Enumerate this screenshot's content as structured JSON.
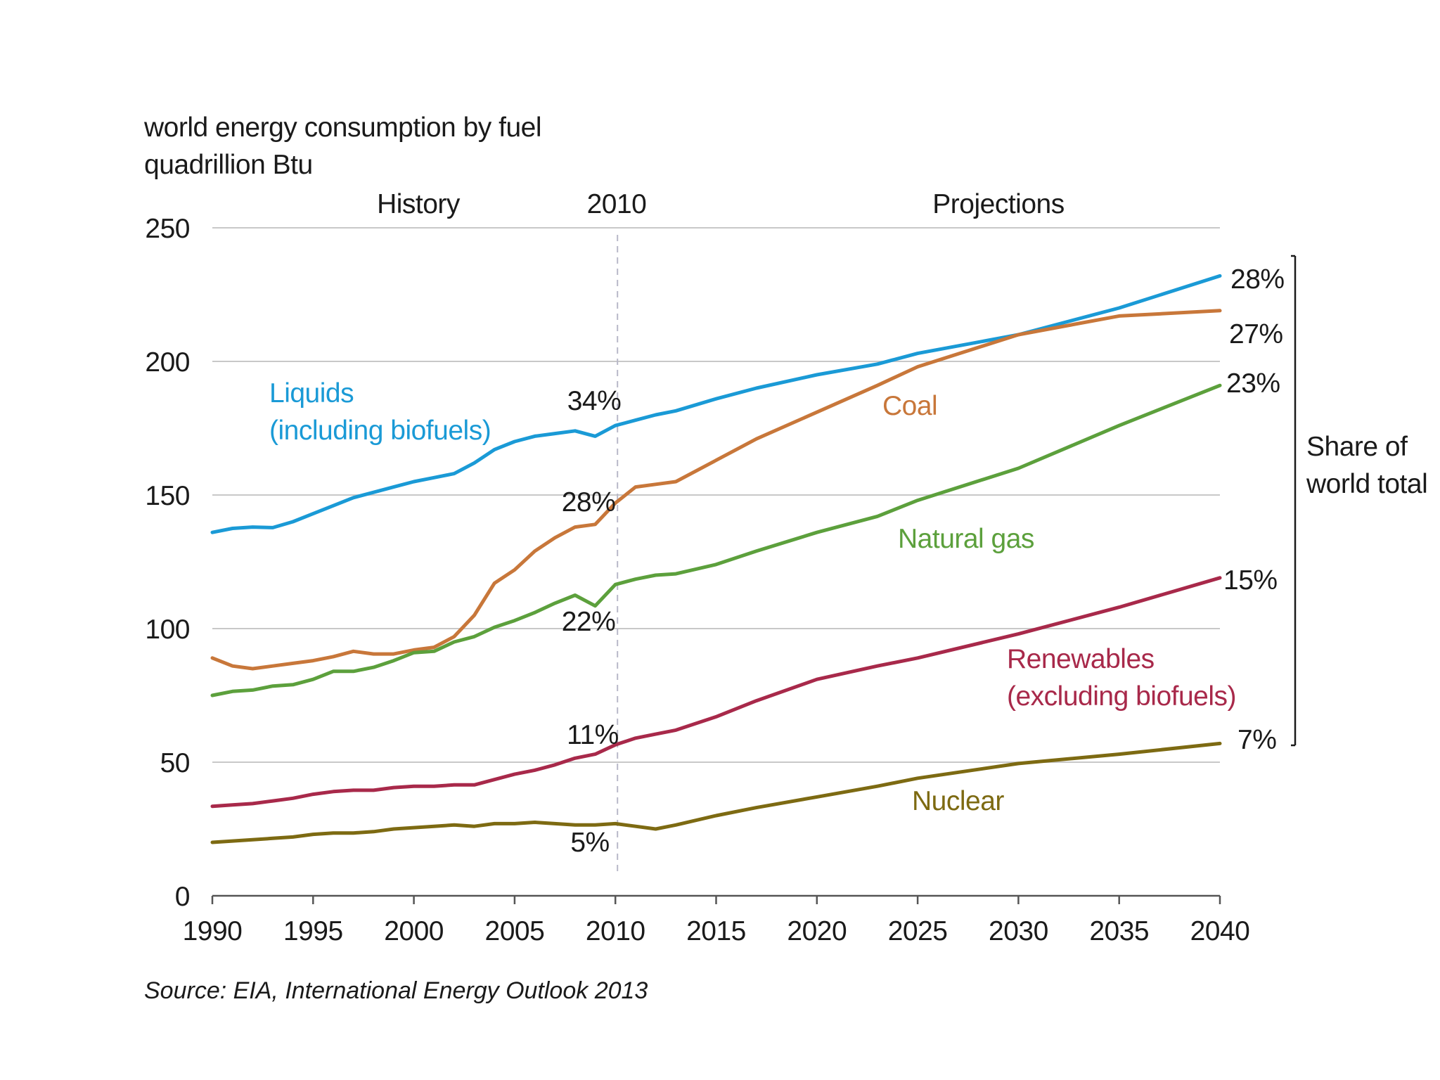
{
  "title": "world energy consumption by fuel",
  "subtitle": "quadrillion Btu",
  "source": "Source:  EIA, International Energy Outlook 2013",
  "chart_data": {
    "type": "line",
    "xlim": [
      1990,
      2040
    ],
    "ylim": [
      0,
      250
    ],
    "xticks": [
      1990,
      1995,
      2000,
      2005,
      2010,
      2015,
      2020,
      2025,
      2030,
      2035,
      2040
    ],
    "yticks": [
      0,
      50,
      100,
      150,
      200,
      250
    ],
    "grid": true,
    "divider_year": 2010,
    "period_labels": {
      "history": "History",
      "divider": "2010",
      "projections": "Projections"
    },
    "bracket_label": [
      "Share of",
      "world total"
    ],
    "series": [
      {
        "name": "Liquids (including biofuels)",
        "label_lines": [
          "Liquids",
          "(including biofuels)"
        ],
        "color": "#1a9ad6",
        "share_2010": "34%",
        "share_2040": "28%",
        "x": [
          1990,
          1991,
          1992,
          1993,
          1994,
          1995,
          1996,
          1997,
          1998,
          1999,
          2000,
          2001,
          2002,
          2003,
          2004,
          2005,
          2006,
          2007,
          2008,
          2009,
          2010,
          2011,
          2012,
          2013,
          2015,
          2017,
          2020,
          2023,
          2025,
          2030,
          2035,
          2040
        ],
        "values": [
          136,
          137.5,
          138,
          137.8,
          140,
          143,
          146,
          149,
          151,
          153,
          155,
          156.5,
          158,
          162,
          167,
          170,
          172,
          173,
          174,
          172,
          176,
          178,
          180,
          181.5,
          186,
          190,
          195,
          199,
          203,
          210,
          220,
          232
        ]
      },
      {
        "name": "Coal",
        "label_lines": [
          "Coal"
        ],
        "color": "#c8773a",
        "share_2010": "28%",
        "share_2040": "27%",
        "x": [
          1990,
          1991,
          1992,
          1993,
          1994,
          1995,
          1996,
          1997,
          1998,
          1999,
          2000,
          2001,
          2002,
          2003,
          2004,
          2005,
          2006,
          2007,
          2008,
          2009,
          2010,
          2011,
          2012,
          2013,
          2015,
          2017,
          2020,
          2023,
          2025,
          2030,
          2035,
          2040
        ],
        "values": [
          89,
          86,
          85,
          86,
          87,
          88,
          89.5,
          91.5,
          90.5,
          90.5,
          92,
          93,
          97,
          105,
          117,
          122,
          129,
          134,
          138,
          139,
          147,
          153,
          154,
          155,
          163,
          171,
          181,
          191,
          198,
          210,
          217,
          219
        ]
      },
      {
        "name": "Natural gas",
        "label_lines": [
          "Natural gas"
        ],
        "color": "#5ca03c",
        "share_2010": "22%",
        "share_2040": "23%",
        "x": [
          1990,
          1991,
          1992,
          1993,
          1994,
          1995,
          1996,
          1997,
          1998,
          1999,
          2000,
          2001,
          2002,
          2003,
          2004,
          2005,
          2006,
          2007,
          2008,
          2009,
          2010,
          2011,
          2012,
          2013,
          2015,
          2017,
          2020,
          2023,
          2025,
          2030,
          2035,
          2040
        ],
        "values": [
          75,
          76.5,
          77,
          78.5,
          79,
          81,
          84,
          84,
          85.5,
          88,
          91,
          91.5,
          95,
          97,
          100.5,
          103,
          106,
          109.5,
          112.5,
          108.5,
          116.5,
          118.5,
          120,
          120.5,
          124,
          129,
          136,
          142,
          148,
          160,
          176,
          191
        ]
      },
      {
        "name": "Renewables (excluding biofuels)",
        "label_lines": [
          "Renewables",
          "(excluding biofuels)"
        ],
        "color": "#a8294a",
        "share_2010": "11%",
        "share_2040": "15%",
        "x": [
          1990,
          1991,
          1992,
          1993,
          1994,
          1995,
          1996,
          1997,
          1998,
          1999,
          2000,
          2001,
          2002,
          2003,
          2004,
          2005,
          2006,
          2007,
          2008,
          2009,
          2010,
          2011,
          2012,
          2013,
          2015,
          2017,
          2020,
          2023,
          2025,
          2030,
          2035,
          2040
        ],
        "values": [
          33.5,
          34,
          34.5,
          35.5,
          36.5,
          38,
          39,
          39.5,
          39.5,
          40.5,
          41,
          41,
          41.5,
          41.5,
          43.5,
          45.5,
          47,
          49,
          51.5,
          53,
          56.5,
          59,
          60.5,
          62,
          67,
          73,
          81,
          86,
          89,
          98,
          108,
          119
        ]
      },
      {
        "name": "Nuclear",
        "label_lines": [
          "Nuclear"
        ],
        "color": "#7d6a12",
        "share_2010": "5%",
        "share_2040": "7%",
        "x": [
          1990,
          1991,
          1992,
          1993,
          1994,
          1995,
          1996,
          1997,
          1998,
          1999,
          2000,
          2001,
          2002,
          2003,
          2004,
          2005,
          2006,
          2007,
          2008,
          2009,
          2010,
          2011,
          2012,
          2013,
          2015,
          2017,
          2020,
          2023,
          2025,
          2030,
          2035,
          2040
        ],
        "values": [
          20,
          20.5,
          21,
          21.5,
          22,
          23,
          23.5,
          23.5,
          24,
          25,
          25.5,
          26,
          26.5,
          26,
          27,
          27,
          27.5,
          27,
          26.5,
          26.5,
          27,
          26,
          25,
          26.5,
          30,
          33,
          37,
          41,
          44,
          49.5,
          53,
          57
        ]
      }
    ]
  }
}
